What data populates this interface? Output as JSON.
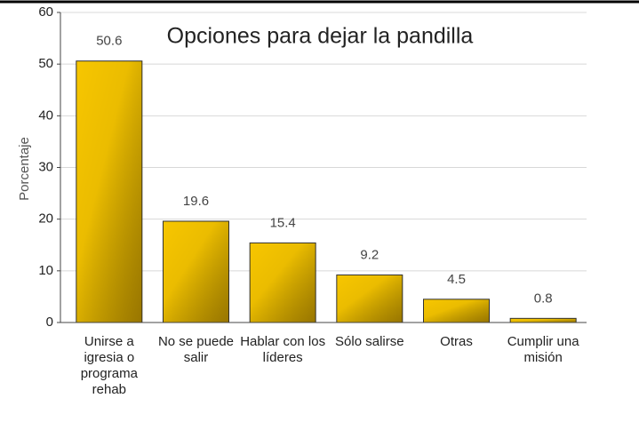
{
  "chart_data": {
    "type": "bar",
    "title": "Opciones para dejar la pandilla",
    "y_label": "Porcentaje",
    "categories": [
      "Unirse a igresia o programa rehab",
      "No se puede salir",
      "Hablar con los líderes",
      "Sólo salirse",
      "Otras",
      "Cumplir una misión"
    ],
    "values": [
      50.6,
      19.6,
      15.4,
      9.2,
      4.5,
      0.8
    ],
    "color": "#f7c600",
    "ylim": [
      0,
      60
    ],
    "yticks": [
      0,
      10,
      20,
      30,
      40,
      50,
      60
    ],
    "grid": true
  }
}
